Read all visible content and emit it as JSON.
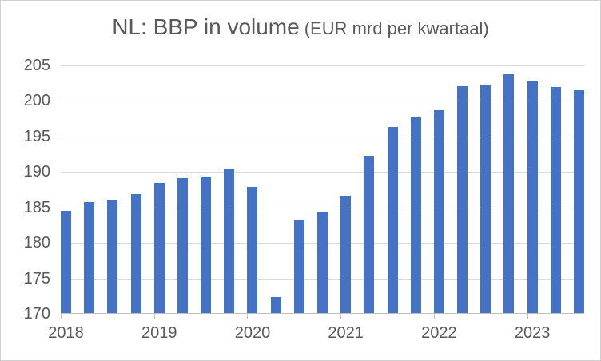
{
  "title": {
    "main": "NL: BBP in volume",
    "sub": "(EUR mrd per kwartaal)"
  },
  "chart_data": {
    "type": "bar",
    "title": "NL: BBP in volume (EUR mrd per kwartaal)",
    "xlabel": "",
    "ylabel": "",
    "unit": "EUR mrd per kwartaal",
    "categories": [
      "2018Q1",
      "2018Q2",
      "2018Q3",
      "2018Q4",
      "2019Q1",
      "2019Q2",
      "2019Q3",
      "2019Q4",
      "2020Q1",
      "2020Q2",
      "2020Q3",
      "2020Q4",
      "2021Q1",
      "2021Q2",
      "2021Q3",
      "2021Q4",
      "2022Q1",
      "2022Q2",
      "2022Q3",
      "2022Q4",
      "2023Q1",
      "2023Q2",
      "2023Q3"
    ],
    "values": [
      184.4,
      185.6,
      185.9,
      186.8,
      188.4,
      189.0,
      189.3,
      190.4,
      187.8,
      172.2,
      183.1,
      184.2,
      186.6,
      192.2,
      196.2,
      197.6,
      198.6,
      202.0,
      202.2,
      203.7,
      202.7,
      201.9,
      201.4
    ],
    "x_tick_labels": [
      "2018",
      "2019",
      "2020",
      "2021",
      "2022",
      "2023"
    ],
    "year_start_indices": [
      0,
      4,
      8,
      12,
      16,
      20
    ],
    "y_ticks": [
      170,
      175,
      180,
      185,
      190,
      195,
      200,
      205
    ],
    "ylim": [
      170,
      205
    ],
    "grid": true,
    "legend": false,
    "colors": {
      "bar": "#4472c4",
      "gridline": "#d9d9d9",
      "axis": "#bfbfbf",
      "text": "#595959",
      "border": "#cfcfcf",
      "background": "#ffffff"
    }
  }
}
